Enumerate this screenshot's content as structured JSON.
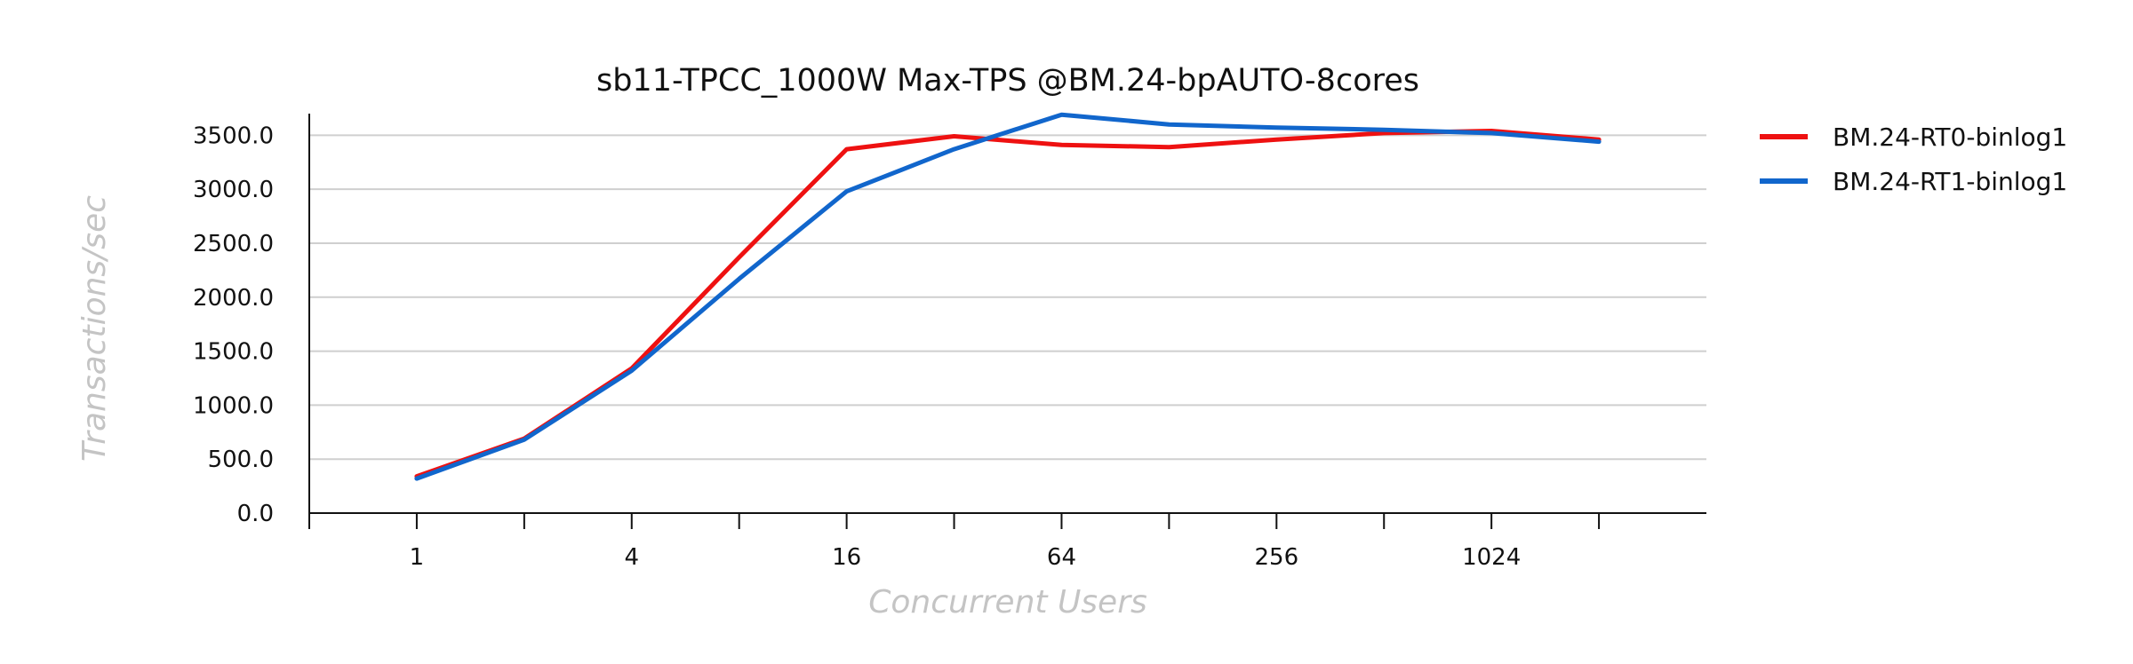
{
  "chart_data": {
    "type": "line",
    "title": "sb11-TPCC_1000W Max-TPS @BM.24-bpAUTO-8cores",
    "xlabel": "Concurrent Users",
    "ylabel": "Transactions/sec",
    "x": [
      1,
      2,
      4,
      8,
      16,
      32,
      64,
      128,
      256,
      512,
      1024,
      2048
    ],
    "x_scale": "log2",
    "xlim": [
      0.5,
      4096
    ],
    "x_ticks": [
      0.5,
      1,
      2,
      4,
      8,
      16,
      32,
      64,
      128,
      256,
      512,
      1024,
      2048
    ],
    "x_tick_labels": [
      "1",
      "4",
      "16",
      "64",
      "256",
      "1024"
    ],
    "x_tick_label_values": [
      1,
      4,
      16,
      64,
      256,
      1024
    ],
    "ylim": [
      0,
      3700
    ],
    "y_ticks": [
      0,
      500,
      1000,
      1500,
      2000,
      2500,
      3000,
      3500
    ],
    "y_tick_labels": [
      "0.0",
      "500.0",
      "1000.0",
      "1500.0",
      "2000.0",
      "2500.0",
      "3000.0",
      "3500.0"
    ],
    "grid": "horizontal",
    "legend_position": "top-right, outside plot",
    "series": [
      {
        "name": "BM.24-RT0-binlog1",
        "color": "#ee1111",
        "values": [
          340,
          690,
          1340,
          2370,
          3370,
          3490,
          3410,
          3390,
          3460,
          3520,
          3540,
          3460
        ]
      },
      {
        "name": "BM.24-RT1-binlog1",
        "color": "#1166cc",
        "values": [
          320,
          680,
          1320,
          2170,
          2980,
          3370,
          3690,
          3600,
          3570,
          3550,
          3520,
          3440
        ]
      }
    ]
  }
}
